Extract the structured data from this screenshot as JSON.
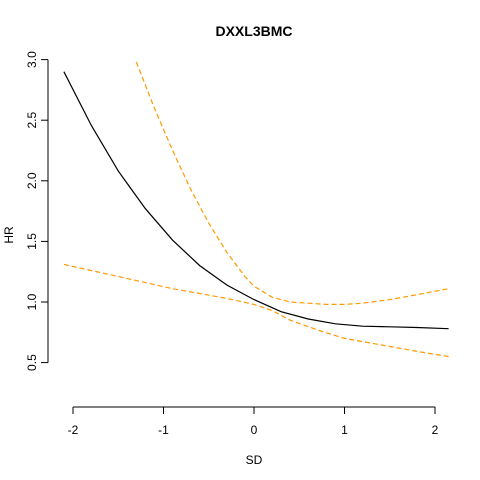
{
  "chart_data": {
    "type": "line",
    "title": "DXXL3BMC",
    "xlabel": "SD",
    "ylabel": "HR",
    "xlim": [
      -2.1,
      2.15
    ],
    "ylim": [
      0.5,
      3.0
    ],
    "x_ticks": [
      -2,
      -1,
      0,
      1,
      2
    ],
    "y_ticks": [
      0.5,
      1.0,
      1.5,
      2.0,
      2.5,
      3.0
    ],
    "x_tick_labels": [
      "-2",
      "-1",
      "0",
      "1",
      "2"
    ],
    "y_tick_labels": [
      "0.5",
      "1.0",
      "1.5",
      "2.0",
      "2.5",
      "3.0"
    ],
    "grid": false,
    "legend": "none",
    "series": [
      {
        "role": "estimate",
        "color": "#000000",
        "style": "solid",
        "x": [
          -2.1,
          -1.8,
          -1.5,
          -1.2,
          -0.9,
          -0.6,
          -0.3,
          0.0,
          0.3,
          0.6,
          0.9,
          1.2,
          1.5,
          1.8,
          2.15
        ],
        "y": [
          2.9,
          2.46,
          2.08,
          1.77,
          1.51,
          1.3,
          1.14,
          1.02,
          0.92,
          0.86,
          0.82,
          0.8,
          0.795,
          0.79,
          0.78
        ]
      },
      {
        "role": "upper-ci",
        "color": "#ff9900",
        "style": "dashed",
        "x": [
          -1.3,
          -1.1,
          -0.9,
          -0.7,
          -0.5,
          -0.3,
          -0.1,
          0.0,
          0.2,
          0.4,
          0.6,
          0.8,
          1.0,
          1.2,
          1.5,
          1.8,
          2.15
        ],
        "y": [
          2.98,
          2.6,
          2.25,
          1.93,
          1.65,
          1.41,
          1.21,
          1.13,
          1.04,
          1.0,
          0.99,
          0.98,
          0.98,
          0.99,
          1.02,
          1.06,
          1.11
        ]
      },
      {
        "role": "lower-ci",
        "color": "#ff9900",
        "style": "dashed",
        "x": [
          -2.1,
          -1.8,
          -1.5,
          -1.2,
          -0.9,
          -0.6,
          -0.3,
          0.0,
          0.2,
          0.4,
          0.7,
          1.0,
          1.3,
          1.6,
          1.9,
          2.15
        ],
        "y": [
          1.31,
          1.26,
          1.21,
          1.16,
          1.11,
          1.07,
          1.03,
          0.98,
          0.93,
          0.85,
          0.77,
          0.7,
          0.66,
          0.62,
          0.58,
          0.55
        ]
      }
    ]
  }
}
